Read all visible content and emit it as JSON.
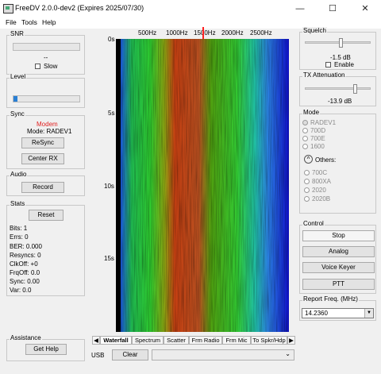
{
  "window": {
    "title": "FreeDV 2.0.0-dev2 (Expires 2025/07/30)",
    "controls": {
      "minimize": "—",
      "maximize": "☐",
      "close": "✕"
    }
  },
  "menu": [
    "File",
    "Tools",
    "Help"
  ],
  "snr": {
    "title": "SNR",
    "value": "--",
    "slow_label": "Slow",
    "slow_checked": false
  },
  "level": {
    "title": "Level",
    "fraction": 0.06
  },
  "sync": {
    "title": "Sync",
    "modem_status": "Modem",
    "mode": "Mode: RADEV1",
    "resync": "ReSync",
    "center_rx": "Center RX",
    "status_color": "#e02020"
  },
  "audio": {
    "title": "Audio",
    "record": "Record"
  },
  "stats": {
    "title": "Stats",
    "reset": "Reset",
    "lines": [
      "Bits: 1",
      "Errs: 0",
      "BER: 0.000",
      "Resyncs: 0",
      "ClkOff: +0",
      "FrqOff: 0.0",
      "Sync: 0.00",
      "Var: 0.0"
    ]
  },
  "assistance": {
    "title": "Assistance",
    "help": "Get Help"
  },
  "waterfall": {
    "freq_ticks": [
      "500Hz",
      "1000Hz",
      "1500Hz",
      "2000Hz",
      "2500Hz"
    ],
    "time_ticks": [
      "0s",
      "5s",
      "10s",
      "15s"
    ],
    "marker_color": "#ff2020"
  },
  "tabs": [
    "Waterfall",
    "Spectrum",
    "Scatter",
    "Frm Radio",
    "Frm Mic",
    "To Spkr/Hdp"
  ],
  "active_tab": "Waterfall",
  "bottom": {
    "mode_label": "USB",
    "clear": "Clear",
    "combo_value": ""
  },
  "squelch": {
    "title": "Squelch",
    "value": "-1.5 dB",
    "enable_label": "Enable",
    "enable_checked": false,
    "fraction": 0.55
  },
  "tx_attenuation": {
    "title": "TX Attenuation",
    "value": "-13.9 dB",
    "fraction": 0.78
  },
  "mode": {
    "title": "Mode",
    "options": [
      "RADEV1",
      "700D",
      "700E",
      "1600"
    ],
    "selected": "RADEV1",
    "others_label": "Others:",
    "other_options": [
      "700C",
      "800XA",
      "2020",
      "2020B"
    ]
  },
  "control": {
    "title": "Control",
    "stop": "Stop",
    "analog": "Analog",
    "voice_keyer": "Voice Keyer",
    "ptt": "PTT"
  },
  "report_freq": {
    "title": "Report Freq. (MHz)",
    "value": "14.2360"
  },
  "icons": {
    "tab_left": "◀",
    "tab_right": "▶",
    "dropdown": "▼",
    "combo": "⌄",
    "others_toggle": "^"
  }
}
